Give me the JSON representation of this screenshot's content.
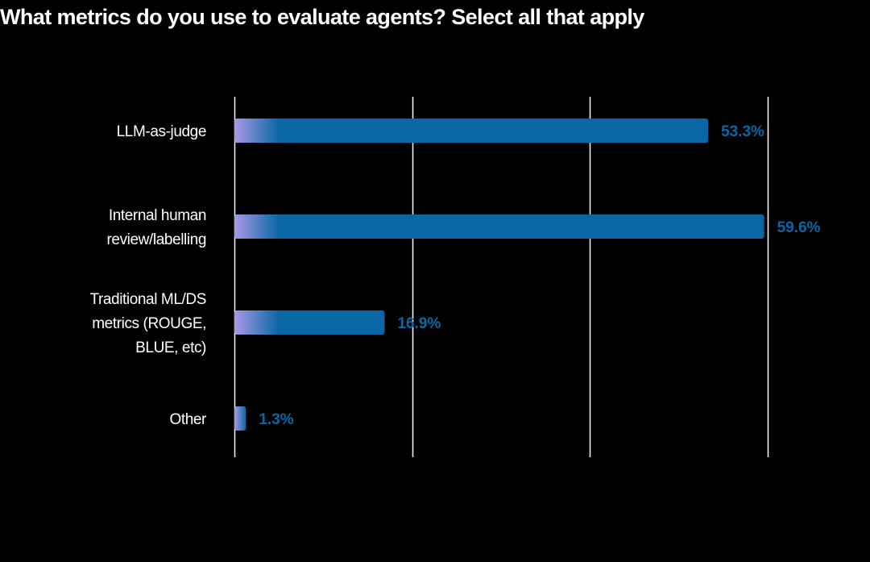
{
  "chart_data": {
    "type": "bar",
    "orientation": "horizontal",
    "title": "What metrics do you use to evaluate agents? Select all that apply",
    "categories": [
      [
        "LLM-as-judge"
      ],
      [
        "Internal human",
        "review/labelling"
      ],
      [
        "Traditional ML/DS",
        "metrics (ROUGE,",
        "BLUE, etc)"
      ],
      [
        "Other"
      ]
    ],
    "values": [
      53.3,
      59.6,
      16.9,
      1.3
    ],
    "value_labels": [
      "53.3%",
      "59.6%",
      "16.9%",
      "1.3%"
    ],
    "xlim": [
      0,
      60
    ],
    "grid_values": [
      0,
      20,
      40,
      60
    ],
    "xlabel": "",
    "ylabel": "",
    "grid": true,
    "legend": "none"
  },
  "colors": {
    "background": "#000000",
    "bar": "#0a67a6",
    "bar_gradient_start": "#a89ae6",
    "value_label": "#0a67a6",
    "gridline": "#ffffff",
    "text": "#ffffff"
  }
}
